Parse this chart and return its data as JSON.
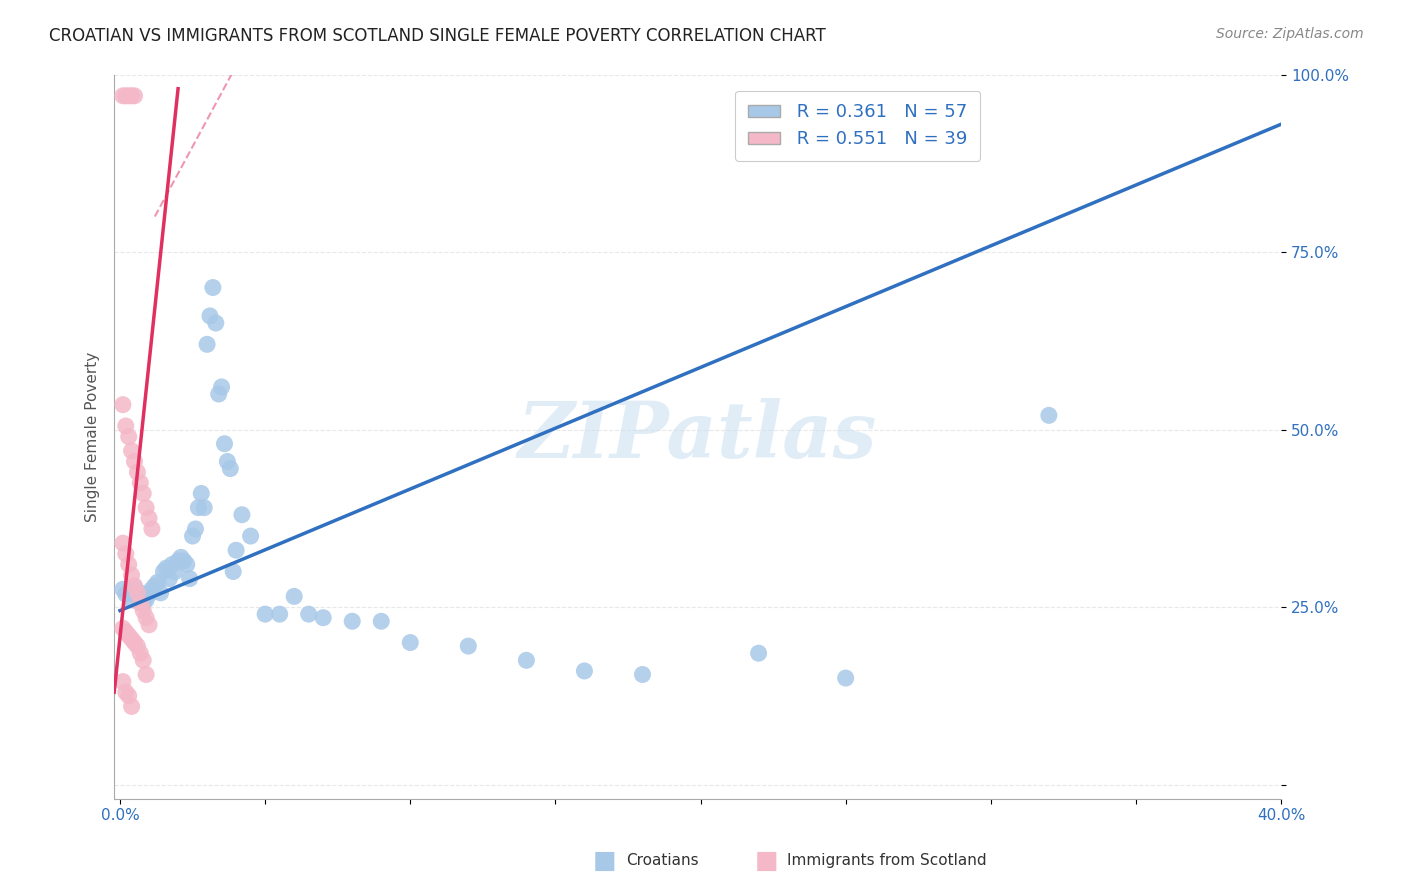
{
  "title": "CROATIAN VS IMMIGRANTS FROM SCOTLAND SINGLE FEMALE POVERTY CORRELATION CHART",
  "source_text": "Source: ZipAtlas.com",
  "ylabel": "Single Female Poverty",
  "xlim": [
    -0.002,
    0.4
  ],
  "ylim": [
    -0.02,
    1.0
  ],
  "blue_R": 0.361,
  "blue_N": 57,
  "pink_R": 0.551,
  "pink_N": 39,
  "blue_color": "#a8c8e8",
  "pink_color": "#f4b8c8",
  "blue_line_color": "#3070c0",
  "pink_line_color": "#e03060",
  "blue_line": [
    [
      0.0,
      0.245
    ],
    [
      0.4,
      0.93
    ]
  ],
  "pink_line_solid": [
    [
      -0.002,
      0.13
    ],
    [
      0.02,
      0.98
    ]
  ],
  "pink_line_dashed": [
    [
      0.012,
      0.8
    ],
    [
      0.045,
      1.05
    ]
  ],
  "blue_scatter": [
    [
      0.001,
      0.275
    ],
    [
      0.002,
      0.268
    ],
    [
      0.003,
      0.272
    ],
    [
      0.004,
      0.26
    ],
    [
      0.005,
      0.278
    ],
    [
      0.006,
      0.265
    ],
    [
      0.007,
      0.27
    ],
    [
      0.008,
      0.255
    ],
    [
      0.009,
      0.26
    ],
    [
      0.01,
      0.268
    ],
    [
      0.011,
      0.275
    ],
    [
      0.012,
      0.28
    ],
    [
      0.013,
      0.285
    ],
    [
      0.014,
      0.27
    ],
    [
      0.015,
      0.3
    ],
    [
      0.016,
      0.305
    ],
    [
      0.017,
      0.29
    ],
    [
      0.018,
      0.31
    ],
    [
      0.019,
      0.3
    ],
    [
      0.02,
      0.315
    ],
    [
      0.021,
      0.32
    ],
    [
      0.022,
      0.315
    ],
    [
      0.023,
      0.31
    ],
    [
      0.024,
      0.29
    ],
    [
      0.025,
      0.35
    ],
    [
      0.026,
      0.36
    ],
    [
      0.027,
      0.39
    ],
    [
      0.028,
      0.41
    ],
    [
      0.029,
      0.39
    ],
    [
      0.03,
      0.62
    ],
    [
      0.031,
      0.66
    ],
    [
      0.032,
      0.7
    ],
    [
      0.033,
      0.65
    ],
    [
      0.034,
      0.55
    ],
    [
      0.035,
      0.56
    ],
    [
      0.036,
      0.48
    ],
    [
      0.037,
      0.455
    ],
    [
      0.038,
      0.445
    ],
    [
      0.039,
      0.3
    ],
    [
      0.04,
      0.33
    ],
    [
      0.042,
      0.38
    ],
    [
      0.045,
      0.35
    ],
    [
      0.05,
      0.24
    ],
    [
      0.055,
      0.24
    ],
    [
      0.06,
      0.265
    ],
    [
      0.065,
      0.24
    ],
    [
      0.07,
      0.235
    ],
    [
      0.08,
      0.23
    ],
    [
      0.09,
      0.23
    ],
    [
      0.1,
      0.2
    ],
    [
      0.12,
      0.195
    ],
    [
      0.14,
      0.175
    ],
    [
      0.16,
      0.16
    ],
    [
      0.18,
      0.155
    ],
    [
      0.22,
      0.185
    ],
    [
      0.25,
      0.15
    ],
    [
      0.32,
      0.52
    ]
  ],
  "pink_scatter": [
    [
      0.001,
      0.97
    ],
    [
      0.002,
      0.97
    ],
    [
      0.003,
      0.97
    ],
    [
      0.004,
      0.97
    ],
    [
      0.005,
      0.97
    ],
    [
      0.001,
      0.535
    ],
    [
      0.002,
      0.505
    ],
    [
      0.003,
      0.49
    ],
    [
      0.004,
      0.47
    ],
    [
      0.005,
      0.455
    ],
    [
      0.006,
      0.44
    ],
    [
      0.007,
      0.425
    ],
    [
      0.008,
      0.41
    ],
    [
      0.009,
      0.39
    ],
    [
      0.01,
      0.375
    ],
    [
      0.011,
      0.36
    ],
    [
      0.001,
      0.34
    ],
    [
      0.002,
      0.325
    ],
    [
      0.003,
      0.31
    ],
    [
      0.004,
      0.295
    ],
    [
      0.005,
      0.28
    ],
    [
      0.006,
      0.27
    ],
    [
      0.007,
      0.255
    ],
    [
      0.008,
      0.245
    ],
    [
      0.009,
      0.235
    ],
    [
      0.01,
      0.225
    ],
    [
      0.001,
      0.22
    ],
    [
      0.002,
      0.215
    ],
    [
      0.003,
      0.21
    ],
    [
      0.004,
      0.205
    ],
    [
      0.005,
      0.2
    ],
    [
      0.006,
      0.195
    ],
    [
      0.007,
      0.185
    ],
    [
      0.008,
      0.175
    ],
    [
      0.009,
      0.155
    ],
    [
      0.001,
      0.145
    ],
    [
      0.002,
      0.13
    ],
    [
      0.003,
      0.125
    ],
    [
      0.004,
      0.11
    ]
  ],
  "watermark": "ZIPatlas",
  "background_color": "#ffffff",
  "grid_color": "#e8e8e8",
  "title_color": "#222222",
  "source_color": "#888888",
  "axis_label_color": "#555555",
  "tick_color": "#3070c0"
}
